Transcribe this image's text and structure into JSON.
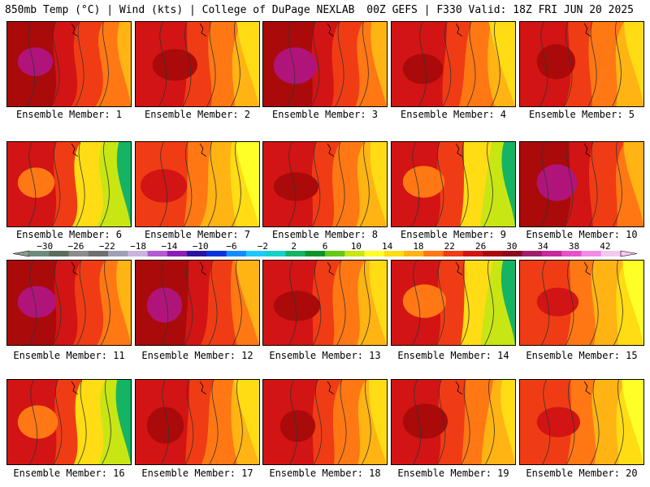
{
  "header": {
    "left": "850mb Temp (°C) | Wind (kts) | College of DuPage NEXLAB",
    "right": "00Z GEFS | F330 Valid: 18Z FRI JUN 20 2025"
  },
  "members": [
    {
      "label": "Ensemble Member: 1",
      "scheme": "hot"
    },
    {
      "label": "Ensemble Member: 2",
      "scheme": "warm"
    },
    {
      "label": "Ensemble Member: 3",
      "scheme": "hot"
    },
    {
      "label": "Ensemble Member: 4",
      "scheme": "warm"
    },
    {
      "label": "Ensemble Member: 5",
      "scheme": "warm"
    },
    {
      "label": "Ensemble Member: 6",
      "scheme": "cool"
    },
    {
      "label": "Ensemble Member: 7",
      "scheme": "mild"
    },
    {
      "label": "Ensemble Member: 8",
      "scheme": "warm"
    },
    {
      "label": "Ensemble Member: 9",
      "scheme": "cool"
    },
    {
      "label": "Ensemble Member: 10",
      "scheme": "hot"
    },
    {
      "label": "Ensemble Member: 11",
      "scheme": "hot"
    },
    {
      "label": "Ensemble Member: 12",
      "scheme": "hot"
    },
    {
      "label": "Ensemble Member: 13",
      "scheme": "warm"
    },
    {
      "label": "Ensemble Member: 14",
      "scheme": "cool"
    },
    {
      "label": "Ensemble Member: 15",
      "scheme": "mild"
    },
    {
      "label": "Ensemble Member: 16",
      "scheme": "cool"
    },
    {
      "label": "Ensemble Member: 17",
      "scheme": "warm"
    },
    {
      "label": "Ensemble Member: 18",
      "scheme": "warm"
    },
    {
      "label": "Ensemble Member: 19",
      "scheme": "warm"
    },
    {
      "label": "Ensemble Member: 20",
      "scheme": "mild"
    }
  ],
  "colorbar": {
    "tick_labels": [
      "−30",
      "−26",
      "−22",
      "−18",
      "−14",
      "−10",
      "−6",
      "−2",
      "2",
      "6",
      "10",
      "14",
      "18",
      "22",
      "26",
      "30",
      "34",
      "38",
      "42"
    ],
    "colors": [
      "#6e8c7c",
      "#5a6e5e",
      "#8c8c8c",
      "#6f6f6f",
      "#a0a0b4",
      "#c8b4dc",
      "#b45ad2",
      "#8c1eb4",
      "#2814a0",
      "#0a32dc",
      "#148cff",
      "#1ec8ff",
      "#14d2c8",
      "#14b464",
      "#0a9628",
      "#64c814",
      "#c8e614",
      "#ffff28",
      "#ffdc14",
      "#ffb414",
      "#ff7814",
      "#f03c14",
      "#d21414",
      "#aa0a0a",
      "#8c0a1e",
      "#a01e6e",
      "#c8289a",
      "#e650c8",
      "#f08ce6",
      "#f5c8f0"
    ]
  },
  "schemes": {
    "hot": [
      "#aa0a0a",
      "#d21414",
      "#b0147a",
      "#f03c14",
      "#ff7814",
      "#ffb414"
    ],
    "warm": [
      "#d21414",
      "#f03c14",
      "#aa0a0a",
      "#ff7814",
      "#ffb414",
      "#ffdc14"
    ],
    "mild": [
      "#f03c14",
      "#ff7814",
      "#d21414",
      "#ffb414",
      "#ffdc14",
      "#ffff28"
    ],
    "cool": [
      "#d21414",
      "#f03c14",
      "#ff7814",
      "#ffdc14",
      "#c8e614",
      "#14b464"
    ]
  }
}
